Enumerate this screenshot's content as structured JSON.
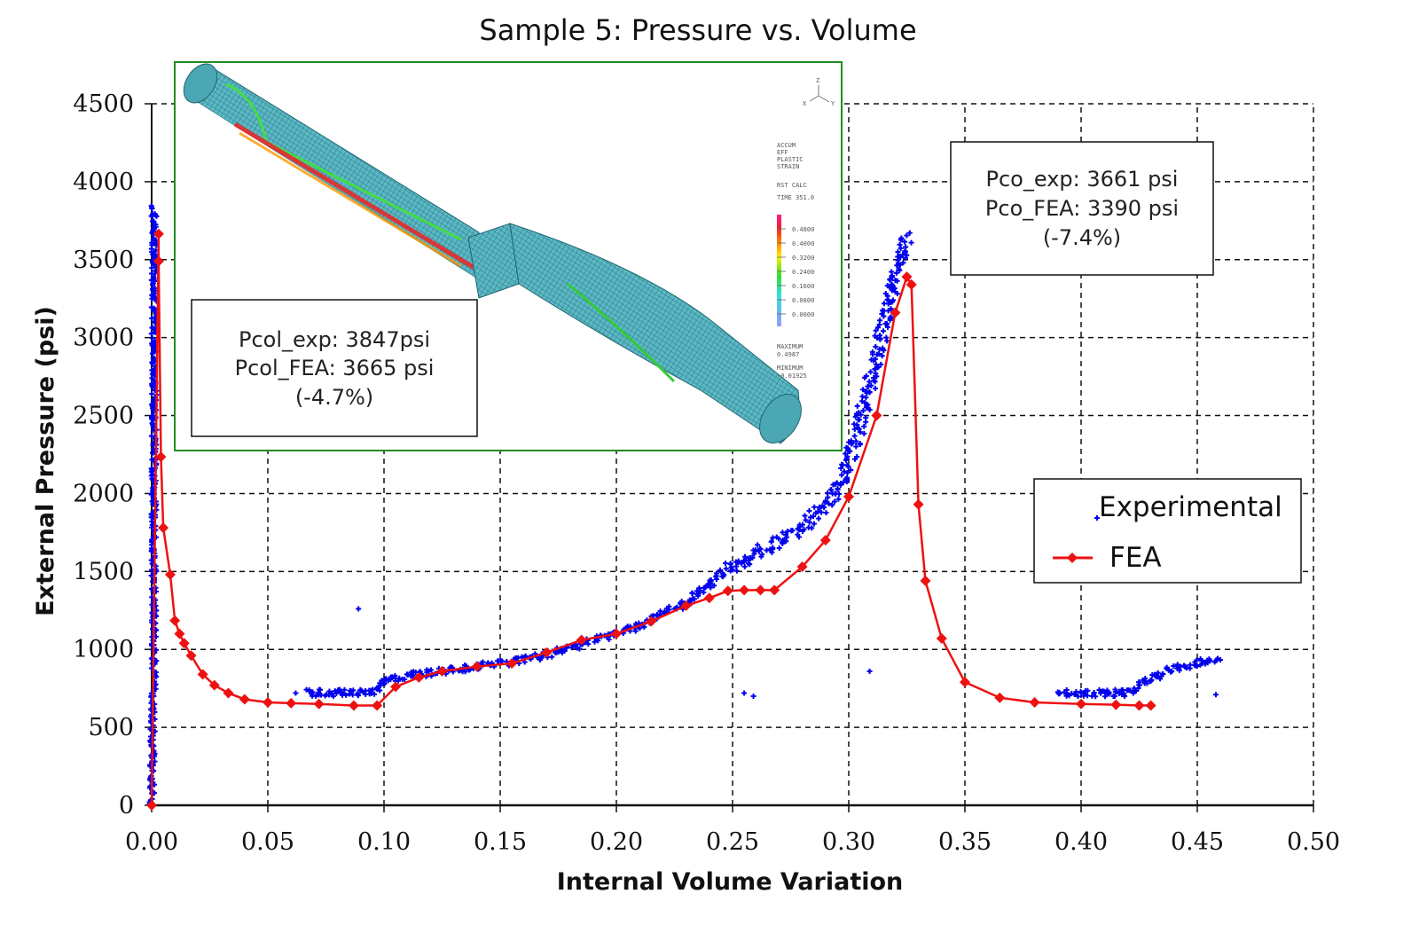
{
  "chart_data": {
    "type": "scatter",
    "title": "Sample 5: Pressure vs. Volume",
    "xlabel": "Internal Volume Variation",
    "ylabel": "External Pressure (psi)",
    "xlim": [
      0,
      0.5
    ],
    "ylim": [
      0,
      4500
    ],
    "xticks": [
      "0.00",
      "0.05",
      "0.10",
      "0.15",
      "0.20",
      "0.25",
      "0.30",
      "0.35",
      "0.40",
      "0.45",
      "0.50"
    ],
    "yticks": [
      "0",
      "500",
      "1000",
      "1500",
      "2000",
      "2500",
      "3000",
      "3500",
      "4000",
      "4500"
    ],
    "grid": true,
    "legend_position": "right",
    "colors": {
      "experimental": "#0000ee",
      "fea": "#ee1111",
      "inset_border": "#228b22"
    },
    "series": [
      {
        "name": "Experimental",
        "style": "markers-plus",
        "band": [
          [
            0.0,
            0
          ],
          [
            0.001,
            900
          ],
          [
            0.001,
            1900
          ],
          [
            0.001,
            2900
          ],
          [
            0.001,
            3847
          ],
          [
            0.066,
            720
          ],
          [
            0.08,
            720
          ],
          [
            0.095,
            725
          ],
          [
            0.1,
            790
          ],
          [
            0.11,
            830
          ],
          [
            0.13,
            870
          ],
          [
            0.15,
            910
          ],
          [
            0.17,
            960
          ],
          [
            0.19,
            1060
          ],
          [
            0.21,
            1150
          ],
          [
            0.23,
            1300
          ],
          [
            0.245,
            1480
          ],
          [
            0.26,
            1620
          ],
          [
            0.275,
            1730
          ],
          [
            0.285,
            1850
          ],
          [
            0.295,
            2000
          ],
          [
            0.302,
            2280
          ],
          [
            0.308,
            2650
          ],
          [
            0.314,
            3000
          ],
          [
            0.32,
            3400
          ],
          [
            0.325,
            3661
          ],
          [
            0.39,
            720
          ],
          [
            0.42,
            720
          ],
          [
            0.428,
            800
          ],
          [
            0.44,
            880
          ],
          [
            0.46,
            940
          ]
        ],
        "outliers": [
          [
            0.089,
            1260
          ],
          [
            0.062,
            720
          ],
          [
            0.255,
            720
          ],
          [
            0.259,
            700
          ],
          [
            0.309,
            860
          ],
          [
            0.458,
            710
          ]
        ]
      },
      {
        "name": "FEA",
        "style": "line-diamond",
        "x": [
          0.0,
          0.003,
          0.003,
          0.004,
          0.005,
          0.008,
          0.01,
          0.012,
          0.014,
          0.017,
          0.022,
          0.027,
          0.033,
          0.04,
          0.05,
          0.06,
          0.072,
          0.087,
          0.097,
          0.105,
          0.115,
          0.125,
          0.14,
          0.155,
          0.17,
          0.185,
          0.2,
          0.215,
          0.23,
          0.24,
          0.248,
          0.255,
          0.262,
          0.268,
          0.28,
          0.29,
          0.3,
          0.312,
          0.32,
          0.325,
          0.327,
          0.33,
          0.333,
          0.34,
          0.35,
          0.365,
          0.38,
          0.4,
          0.415,
          0.425,
          0.43
        ],
        "y": [
          0,
          3665,
          3490,
          2235,
          1780,
          1480,
          1185,
          1100,
          1040,
          960,
          840,
          770,
          720,
          680,
          660,
          655,
          650,
          640,
          640,
          760,
          820,
          860,
          890,
          910,
          980,
          1060,
          1100,
          1180,
          1280,
          1330,
          1375,
          1380,
          1380,
          1380,
          1530,
          1700,
          1980,
          2500,
          3160,
          3390,
          3340,
          1930,
          1440,
          1070,
          790,
          690,
          660,
          650,
          645,
          640,
          640
        ]
      }
    ],
    "annotations": [
      {
        "id": "collapse",
        "lines": [
          "Pcol_exp:  3847psi",
          "Pcol_FEA:  3665 psi",
          "(-4.7%)"
        ]
      },
      {
        "id": "crossover",
        "lines": [
          "Pco_exp:  3661 psi",
          "Pco_FEA: 3390 psi",
          "(-7.4%)"
        ]
      }
    ],
    "inset": {
      "description": "FEA contour plot of collapsed pipe sample",
      "axis_triad": [
        "Z",
        "X",
        "Y"
      ],
      "legend_title": [
        "ACCUM",
        "EFF",
        "PLASTIC",
        "STRAIN",
        "RST CALC",
        "TIME 351.0"
      ],
      "legend_levels": [
        "0.4800",
        "0.4000",
        "0.3200",
        "0.2400",
        "0.1600",
        "0.0800",
        "0.0000"
      ],
      "maximum_label": "MAXIMUM",
      "maximum_value": "0.4987",
      "minimum_label": "MINIMUM",
      "minimum_value": "-0.01925"
    }
  }
}
